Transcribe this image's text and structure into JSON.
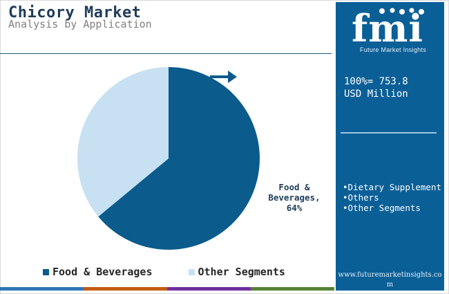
{
  "header": {
    "title": "Chicory Market",
    "subtitle": "Analysis by Application"
  },
  "chart_data": {
    "type": "pie",
    "categories": [
      "Food & Beverages",
      "Other Segments"
    ],
    "values": [
      64,
      36
    ],
    "colors": [
      "#0b5b8c",
      "#c7e1f2"
    ],
    "slice_labels": [
      "Food & Beverages, 64%"
    ],
    "legend": [
      "Food & Beverages",
      "Other Segments"
    ],
    "legend_position": "bottom"
  },
  "panel": {
    "logo_text": "fmi",
    "logo_tagline": "Future Market Insights",
    "total_line1": "100%= 753.8",
    "total_line2": "USD Million",
    "other_segments": [
      "Dietary Supplement",
      "Others",
      "Other Segments"
    ],
    "url": "www.futuremarketinsights.com"
  },
  "colors": {
    "panel_bg": "#0b5f97",
    "accent_bar": [
      "#2e75b6",
      "#c55a11",
      "#7030a0",
      "#548235"
    ]
  }
}
